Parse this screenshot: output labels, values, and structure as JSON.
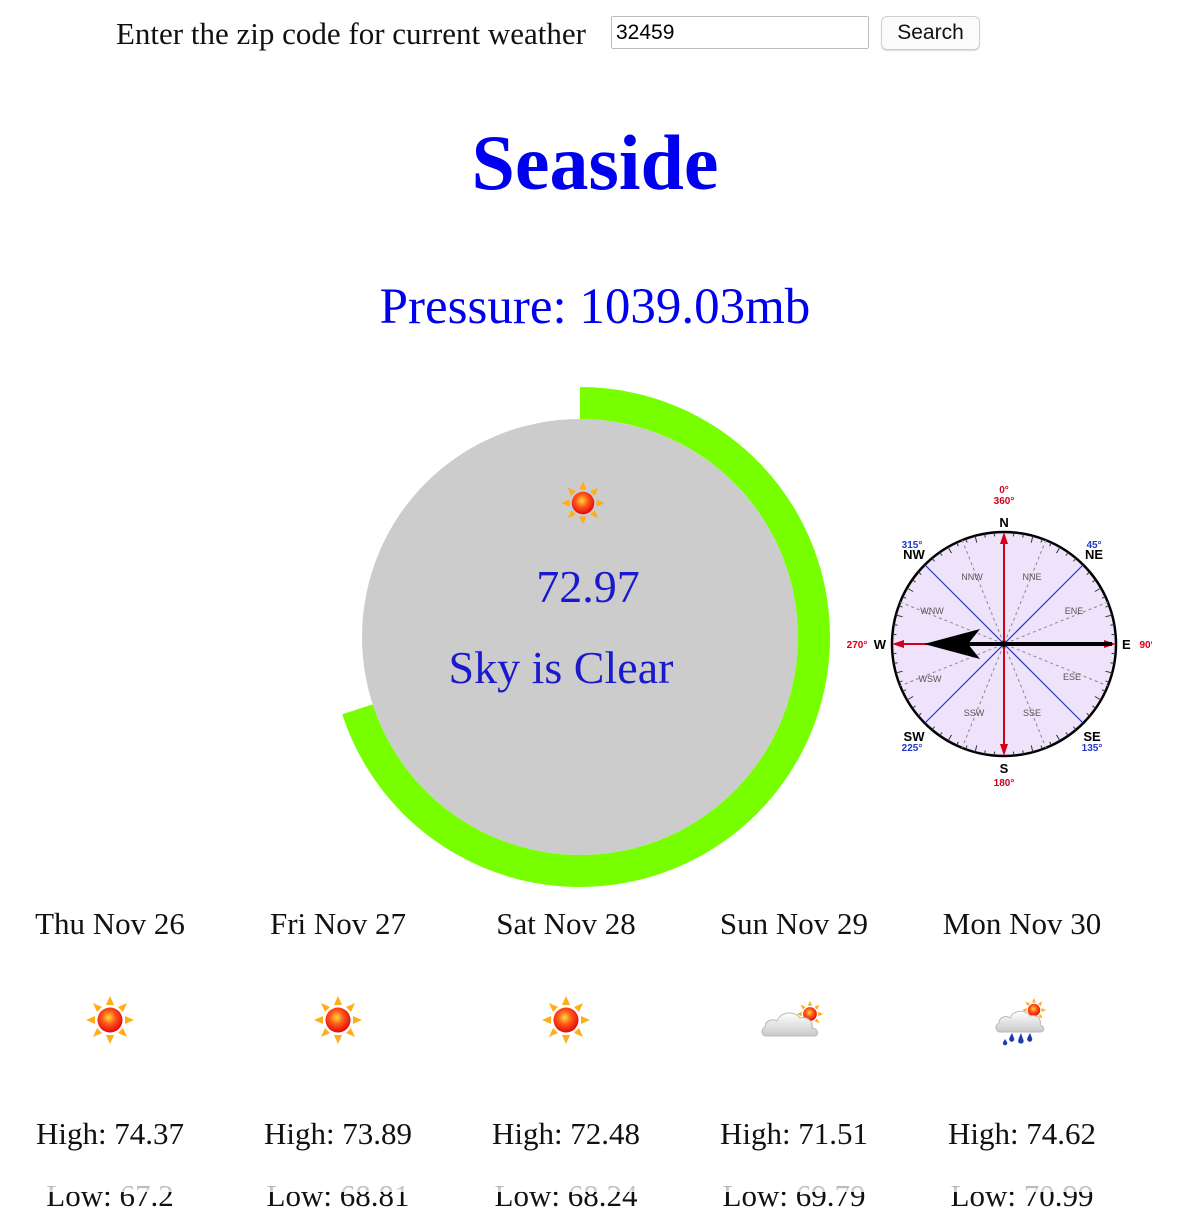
{
  "search": {
    "label": "Enter the zip code for current weather",
    "zip_value": "32459",
    "button_label": "Search"
  },
  "city": "Seaside",
  "pressure": {
    "label": "Pressure:",
    "value": "1039.03mb"
  },
  "current": {
    "temperature": "72.97",
    "description": "Sky is Clear",
    "icon": "sun-icon",
    "ring_color": "#77ff00",
    "ring_fraction": 0.7
  },
  "compass": {
    "wind_direction_deg": 270,
    "labels": {
      "n": "N",
      "s": "S",
      "e": "E",
      "w": "W",
      "ne": "NE",
      "nw": "NW",
      "se": "SE",
      "sw": "SW",
      "nne": "NNE",
      "nnw": "NNW",
      "ene": "ENE",
      "ese": "ESE",
      "wnw": "WNW",
      "wsw": "WSW",
      "ssw": "SSW",
      "sse": "SSE",
      "deg_n_top": "0°",
      "deg_n": "360°",
      "deg_e": "90°",
      "deg_s": "180°",
      "deg_w": "270°",
      "deg_ne": "45°",
      "deg_nw": "315°",
      "deg_se": "135°",
      "deg_sw": "225°"
    }
  },
  "forecast": [
    {
      "day": "Thu Nov 26",
      "icon": "sun-icon",
      "high": "High: 74.37",
      "low": "Low: 67.2"
    },
    {
      "day": "Fri Nov 27",
      "icon": "sun-icon",
      "high": "High: 73.89",
      "low": "Low: 68.81"
    },
    {
      "day": "Sat Nov 28",
      "icon": "sun-icon",
      "high": "High: 72.48",
      "low": "Low: 68.24"
    },
    {
      "day": "Sun Nov 29",
      "icon": "partly-cloudy-icon",
      "high": "High: 71.51",
      "low": "Low: 69.79"
    },
    {
      "day": "Mon Nov 30",
      "icon": "rain-sun-icon",
      "high": "High: 74.62",
      "low": "Low: 70.99"
    }
  ]
}
